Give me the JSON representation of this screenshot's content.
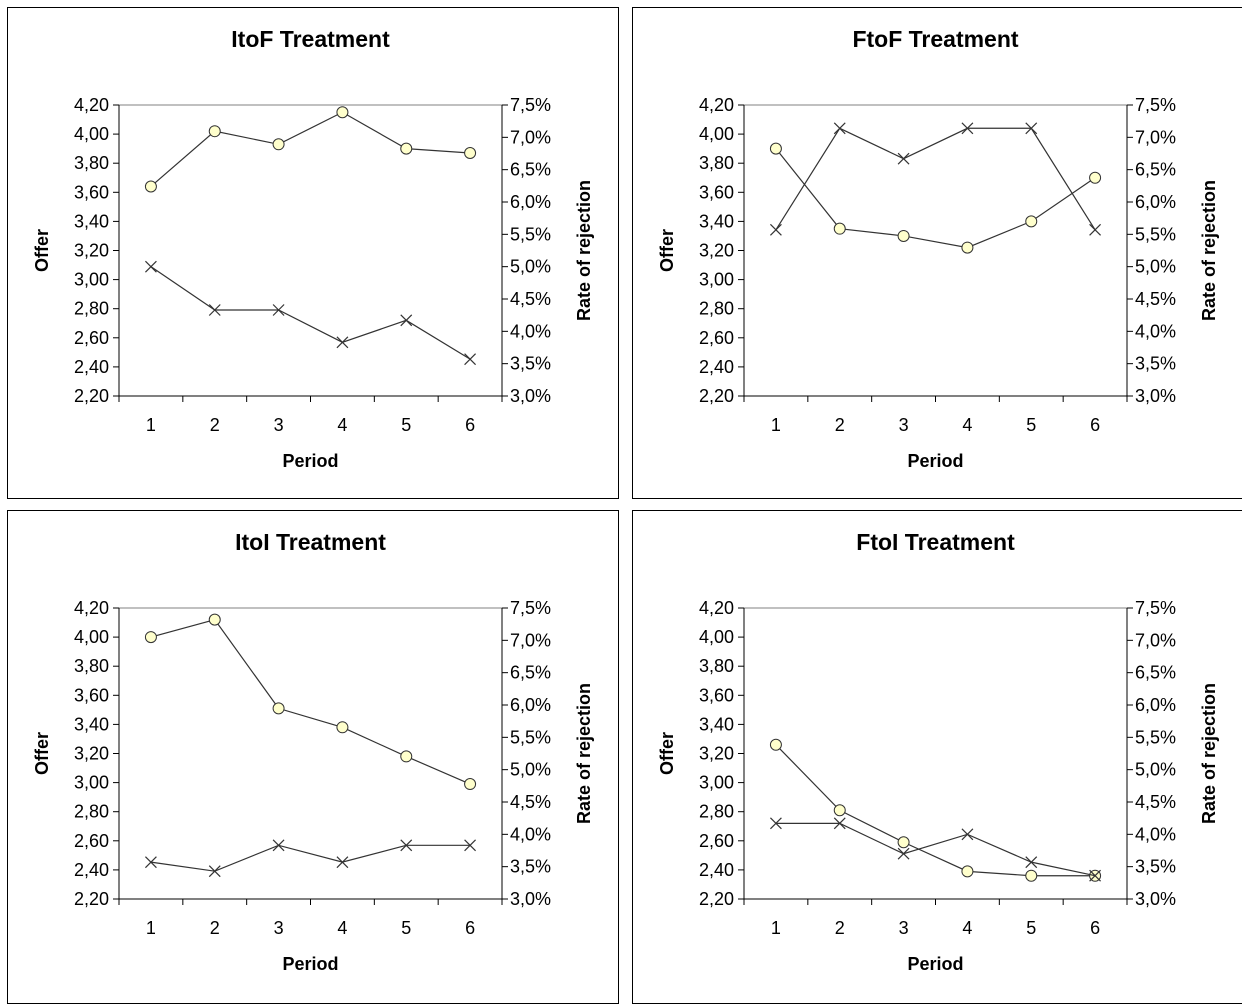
{
  "chart_data": [
    {
      "type": "line",
      "title": "ItoF Treatment",
      "xlabel": "Period",
      "ylabel": "Offer",
      "y2label": "Rate of rejection",
      "x": [
        "1",
        "2",
        "3",
        "4",
        "5",
        "6"
      ],
      "ylim": [
        2.2,
        4.2
      ],
      "y2lim": [
        3.0,
        7.5
      ],
      "yticks": [
        "2,20",
        "2,40",
        "2,60",
        "2,80",
        "3,00",
        "3,20",
        "3,40",
        "3,60",
        "3,80",
        "4,00",
        "4,20"
      ],
      "y2ticks": [
        "3,0%",
        "3,5%",
        "4,0%",
        "4,5%",
        "5,0%",
        "5,5%",
        "6,0%",
        "6,5%",
        "7,0%",
        "7,5%"
      ],
      "series": [
        {
          "axis": "left",
          "marker": "circle",
          "values": [
            3.64,
            4.02,
            3.93,
            4.15,
            3.9,
            3.87
          ]
        },
        {
          "axis": "right",
          "marker": "x",
          "values": [
            5.0,
            4.33,
            4.33,
            3.83,
            4.17,
            3.57
          ]
        }
      ]
    },
    {
      "type": "line",
      "title": "FtoF Treatment",
      "xlabel": "Period",
      "ylabel": "Offer",
      "y2label": "Rate of rejection",
      "x": [
        "1",
        "2",
        "3",
        "4",
        "5",
        "6"
      ],
      "ylim": [
        2.2,
        4.2
      ],
      "y2lim": [
        3.0,
        7.5
      ],
      "yticks": [
        "2,20",
        "2,40",
        "2,60",
        "2,80",
        "3,00",
        "3,20",
        "3,40",
        "3,60",
        "3,80",
        "4,00",
        "4,20"
      ],
      "y2ticks": [
        "3,0%",
        "3,5%",
        "4,0%",
        "4,5%",
        "5,0%",
        "5,5%",
        "6,0%",
        "6,5%",
        "7,0%",
        "7,5%"
      ],
      "series": [
        {
          "axis": "left",
          "marker": "circle",
          "values": [
            3.9,
            3.35,
            3.3,
            3.22,
            3.4,
            3.7
          ]
        },
        {
          "axis": "right",
          "marker": "x",
          "values": [
            5.57,
            7.14,
            6.67,
            7.14,
            7.14,
            5.57
          ]
        }
      ]
    },
    {
      "type": "line",
      "title": "ItoI Treatment",
      "xlabel": "Period",
      "ylabel": "Offer",
      "y2label": "Rate of rejection",
      "x": [
        "1",
        "2",
        "3",
        "4",
        "5",
        "6"
      ],
      "ylim": [
        2.2,
        4.2
      ],
      "y2lim": [
        3.0,
        7.5
      ],
      "yticks": [
        "2,20",
        "2,40",
        "2,60",
        "2,80",
        "3,00",
        "3,20",
        "3,40",
        "3,60",
        "3,80",
        "4,00",
        "4,20"
      ],
      "y2ticks": [
        "3,0%",
        "3,5%",
        "4,0%",
        "4,5%",
        "5,0%",
        "5,5%",
        "6,0%",
        "6,5%",
        "7,0%",
        "7,5%"
      ],
      "series": [
        {
          "axis": "left",
          "marker": "circle",
          "values": [
            4.0,
            4.12,
            3.51,
            3.38,
            3.18,
            2.99
          ]
        },
        {
          "axis": "right",
          "marker": "x",
          "values": [
            3.57,
            3.43,
            3.83,
            3.57,
            3.83,
            3.83
          ]
        }
      ]
    },
    {
      "type": "line",
      "title": "FtoI Treatment",
      "xlabel": "Period",
      "ylabel": "Offer",
      "y2label": "Rate of rejection",
      "x": [
        "1",
        "2",
        "3",
        "4",
        "5",
        "6"
      ],
      "ylim": [
        2.2,
        4.2
      ],
      "y2lim": [
        3.0,
        7.5
      ],
      "yticks": [
        "2,20",
        "2,40",
        "2,60",
        "2,80",
        "3,00",
        "3,20",
        "3,40",
        "3,60",
        "3,80",
        "4,00",
        "4,20"
      ],
      "y2ticks": [
        "3,0%",
        "3,5%",
        "4,0%",
        "4,5%",
        "5,0%",
        "5,5%",
        "6,0%",
        "6,5%",
        "7,0%",
        "7,5%"
      ],
      "series": [
        {
          "axis": "left",
          "marker": "circle",
          "values": [
            3.26,
            2.81,
            2.59,
            2.39,
            2.36,
            2.36
          ]
        },
        {
          "axis": "right",
          "marker": "x",
          "values": [
            4.17,
            4.17,
            3.7,
            4.0,
            3.57,
            3.36
          ]
        }
      ]
    }
  ],
  "colors": {
    "line": "#333333",
    "marker_fill": "#ffffcc",
    "gridline": "#808080"
  }
}
